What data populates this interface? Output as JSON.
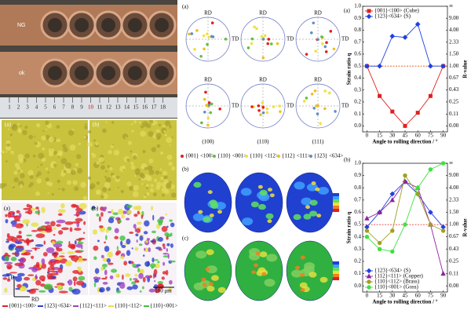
{
  "photo": {
    "labels": [
      "NG",
      "ok"
    ],
    "ruler": [
      1,
      2,
      3,
      4,
      5,
      6,
      7,
      8,
      9,
      10,
      11,
      12,
      13,
      14,
      15,
      16,
      17,
      18
    ]
  },
  "micrographs": {
    "labels": [
      "(a)",
      "(b)"
    ]
  },
  "ebsd": {
    "labels": [
      "(a)",
      "(b)"
    ],
    "axes": [
      "TD",
      "RD"
    ],
    "scale": "100 μm",
    "legend": [
      {
        "name": "{001}<100>",
        "color": "#e0202a"
      },
      {
        "name": "{123}<634>",
        "color": "#2a3fd0"
      },
      {
        "name": "{112}<111>",
        "color": "#a040c0"
      },
      {
        "name": "{110}<112>",
        "color": "#e8e040"
      },
      {
        "name": "{110}<001>",
        "color": "#40c040"
      }
    ]
  },
  "pole_figures": {
    "label": "(a)",
    "rd": "RD",
    "td": "TD",
    "columns": [
      "(100)",
      "(110)",
      "(111)"
    ],
    "legend": [
      {
        "name": "{001} <100>",
        "color": "#e02020"
      },
      {
        "name": "{110} <001>",
        "color": "#60c040"
      },
      {
        "name": "{110} <112>",
        "color": "#f0e040"
      },
      {
        "name": "{112} <111>",
        "color": "#f0c020"
      },
      {
        "name": "{123} <634>",
        "color": "#6090c0"
      }
    ]
  },
  "odf": {
    "labels": [
      "(b)",
      "(c)"
    ]
  },
  "chart_data": [
    {
      "type": "line",
      "label": "(a)",
      "xlabel": "Angle to rolling direction / °",
      "ylabel": "Strain ratio q",
      "y2label": "R-value",
      "x": [
        0,
        15,
        30,
        45,
        60,
        75,
        90
      ],
      "xlim": [
        -5,
        95
      ],
      "xticks": [
        0,
        15,
        30,
        45,
        60,
        75,
        90
      ],
      "ylim": [
        -0.05,
        1.0
      ],
      "yticks": [
        {
          "value": 0,
          "label": "0.0"
        },
        0.1,
        0.2,
        0.3,
        0.4,
        0.5,
        0.6,
        0.7,
        0.8,
        0.9,
        {
          "value": 1,
          "label": "1.0"
        }
      ],
      "y2lim": [
        0,
        null
      ],
      "y2ticks": [
        {
          "value": 0,
          "label": "0.00"
        },
        {
          "value": 0.11,
          "label": "0.11"
        },
        {
          "value": 0.25,
          "label": "0.25"
        },
        {
          "value": 0.43,
          "label": "0.43"
        },
        {
          "value": 0.67,
          "label": "0.67"
        },
        {
          "value": 1,
          "label": "1.00"
        },
        {
          "value": 1.5,
          "label": "1.50"
        },
        {
          "value": 2.33,
          "label": "2.33"
        },
        {
          "value": 4,
          "label": "4.00"
        },
        {
          "value": 9,
          "label": "9.00"
        },
        {
          "value": null,
          "label": "∞"
        }
      ],
      "reference_line": 0.5,
      "reference_color": "#e05010",
      "legend": "upper left",
      "series": [
        {
          "name": "{001}<100> (Cube)",
          "color": "#e02020",
          "marker": "square",
          "values": [
            0.5,
            0.25,
            0.12,
            0.0,
            0.11,
            0.25,
            0.5
          ]
        },
        {
          "name": "{123}<634> (S)",
          "color": "#2040e0",
          "marker": "diamond",
          "values": [
            0.5,
            0.5,
            0.75,
            0.74,
            0.85,
            0.5,
            0.5
          ]
        }
      ]
    },
    {
      "type": "line",
      "label": "(b)",
      "xlabel": "Angle to rolling direction / °",
      "ylabel": "Strain ratio q",
      "y2label": "R-value",
      "x": [
        0,
        15,
        30,
        45,
        60,
        75,
        90
      ],
      "xlim": [
        -5,
        95
      ],
      "xticks": [
        0,
        15,
        30,
        45,
        60,
        75,
        90
      ],
      "ylim": [
        -0.05,
        1.0
      ],
      "yticks": [
        {
          "value": 0,
          "label": "0.0"
        },
        0.1,
        0.2,
        0.3,
        0.4,
        0.5,
        0.6,
        0.7,
        0.8,
        0.9,
        {
          "value": 1,
          "label": "1.0"
        }
      ],
      "y2lim": [
        0,
        null
      ],
      "y2ticks": [
        {
          "value": 0,
          "label": "0.00"
        },
        {
          "value": 0.11,
          "label": "0.11"
        },
        {
          "value": 0.25,
          "label": "0.25"
        },
        {
          "value": 0.43,
          "label": "0.43"
        },
        {
          "value": 0.67,
          "label": "0.67"
        },
        {
          "value": 1,
          "label": "1.00"
        },
        {
          "value": 1.5,
          "label": "1.50"
        },
        {
          "value": 2.33,
          "label": "2.33"
        },
        {
          "value": 4,
          "label": "4.00"
        },
        {
          "value": 9,
          "label": "9.00"
        },
        {
          "value": null,
          "label": "∞"
        }
      ],
      "reference_line": 0.5,
      "reference_color": "#e02020",
      "legend": "lower left",
      "series": [
        {
          "name": "{123}<634> (S)",
          "color": "#2040e0",
          "marker": "diamond",
          "values": [
            0.48,
            0.6,
            0.75,
            0.85,
            0.75,
            0.6,
            0.48
          ]
        },
        {
          "name": "{112}<111> (Copper)",
          "color": "#9020a0",
          "marker": "triangle",
          "values": [
            0.55,
            0.6,
            0.7,
            0.85,
            0.8,
            0.5,
            0.1
          ]
        },
        {
          "name": "{110}<112> (Brass)",
          "color": "#a0a020",
          "marker": "circle",
          "values": [
            0.45,
            0.35,
            0.45,
            0.9,
            0.75,
            0.5,
            0.45
          ]
        },
        {
          "name": "{110}<001> (Goss)",
          "color": "#40e040",
          "marker": "circle",
          "values": [
            0.4,
            0.3,
            0.28,
            0.5,
            0.8,
            0.95,
            1.0
          ]
        }
      ]
    }
  ]
}
